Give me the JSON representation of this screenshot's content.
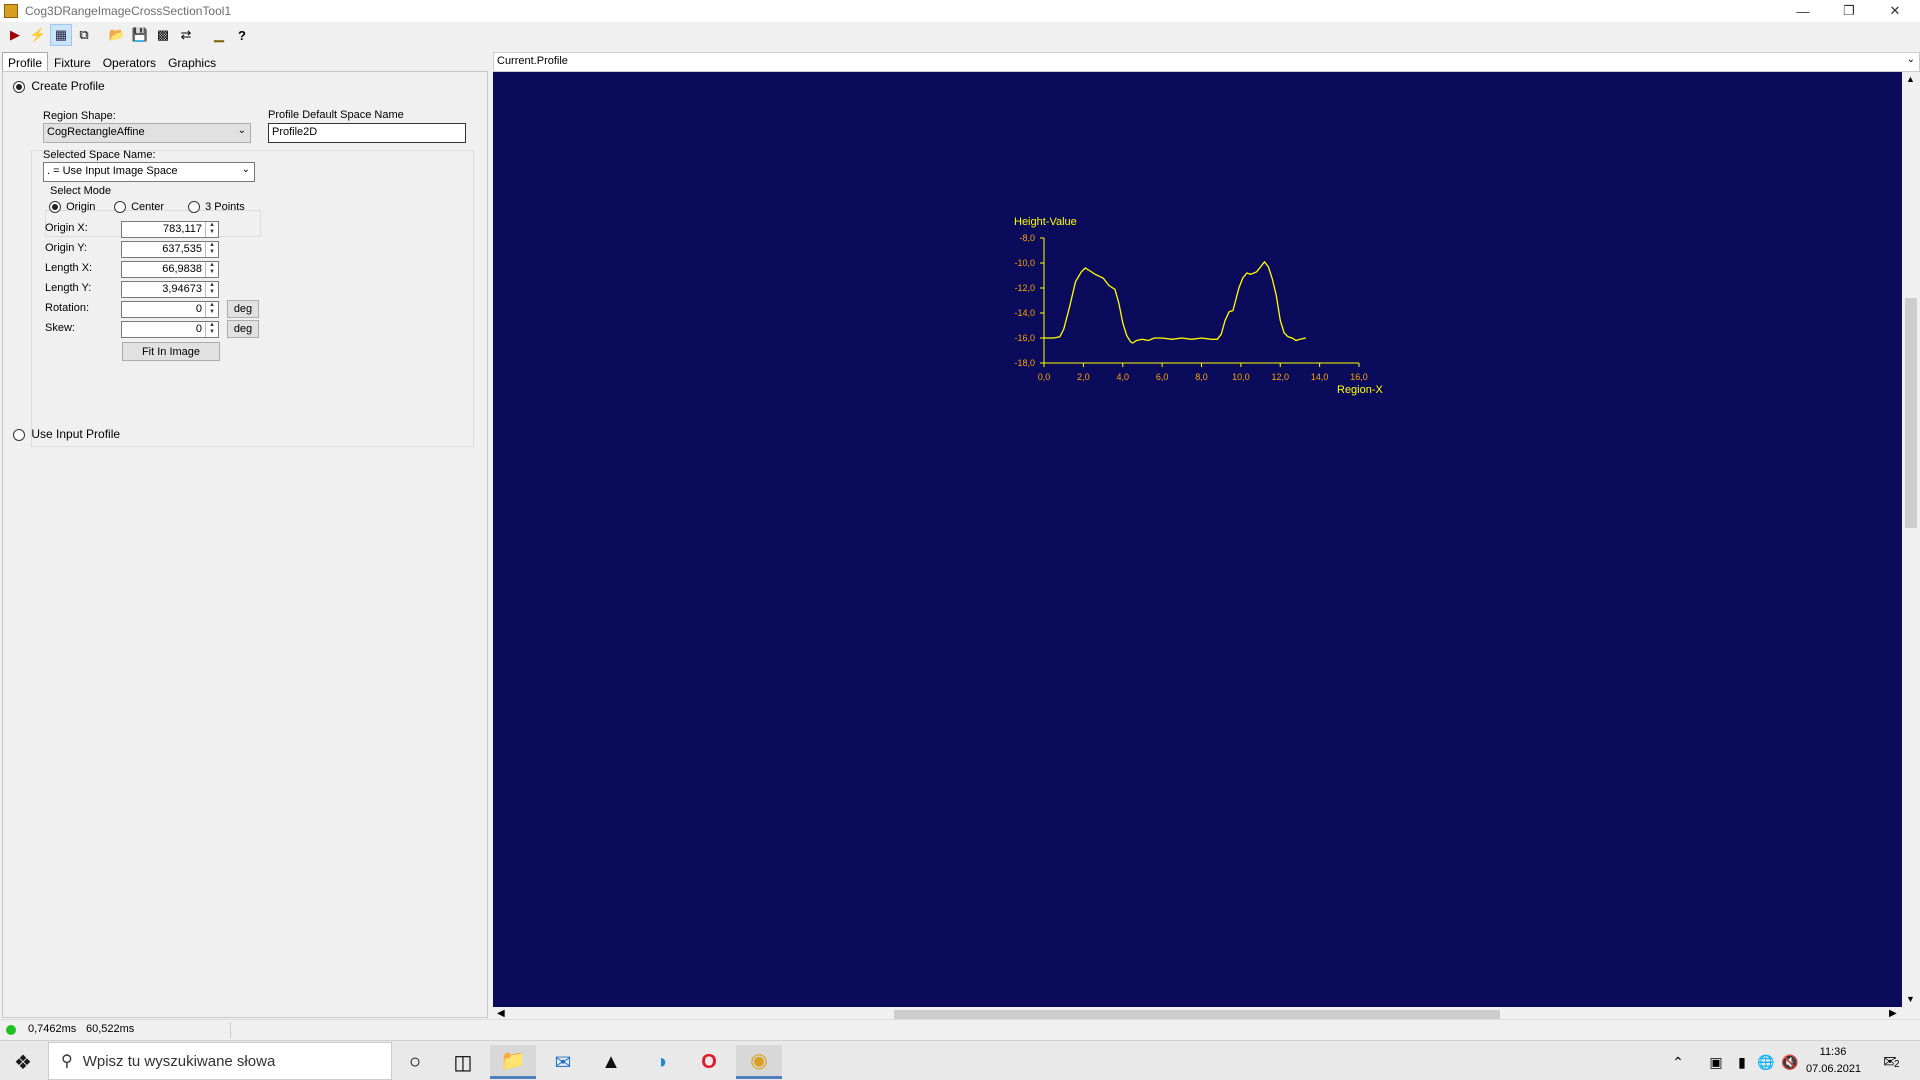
{
  "window": {
    "title": "Cog3DRangeImageCrossSectionTool1"
  },
  "tabs": [
    "Profile",
    "Fixture",
    "Operators",
    "Graphics"
  ],
  "profile": {
    "create_profile_label": "Create Profile",
    "use_input_profile_label": "Use Input Profile",
    "region_shape_label": "Region Shape:",
    "region_shape_value": "CogRectangleAffine",
    "default_space_label": "Profile Default Space Name",
    "default_space_value": "Profile2D",
    "selected_space_label": "Selected Space Name:",
    "selected_space_value": ". = Use Input Image Space",
    "select_mode_label": "Select Mode",
    "modes": [
      "Origin",
      "Center",
      "3 Points"
    ],
    "selected_mode": "Origin",
    "fields": [
      {
        "label": "Origin X:",
        "value": "783,117"
      },
      {
        "label": "Origin Y:",
        "value": "637,535"
      },
      {
        "label": "Length X:",
        "value": "66,9838"
      },
      {
        "label": "Length Y:",
        "value": "3,94673"
      },
      {
        "label": "Rotation:",
        "value": "0",
        "unit": "deg"
      },
      {
        "label": "Skew:",
        "value": "0",
        "unit": "deg"
      }
    ],
    "fit_button": "Fit In Image"
  },
  "status": {
    "time1": "0,7462ms",
    "time2": "60,522ms",
    "indicator_color": "#1fc11f"
  },
  "display": {
    "header": "Current.Profile",
    "background": "#0b0b5c"
  },
  "chart_data": {
    "type": "line",
    "title": "",
    "ylabel": "Height-Value",
    "xlabel": "Region-X",
    "xlim": [
      0,
      16
    ],
    "ylim": [
      -18,
      -8
    ],
    "x_ticks": [
      "0,0",
      "2,0",
      "4,0",
      "6,0",
      "8,0",
      "10,0",
      "12,0",
      "14,0",
      "16,0"
    ],
    "y_ticks": [
      "-8,0",
      "-10,0",
      "-12,0",
      "-14,0",
      "-16,0",
      "-18,0"
    ],
    "axis_color": "#ffff00",
    "tick_label_color": "#ffa500",
    "line_color": "#ffff00",
    "series": [
      {
        "x": [
          0.0,
          0.5,
          0.8,
          1.0,
          1.3,
          1.6,
          1.9,
          2.1,
          2.3,
          2.6,
          3.0,
          3.3,
          3.6,
          3.8,
          4.0,
          4.2,
          4.4,
          4.5,
          4.7,
          5.0,
          5.3,
          5.6,
          6.0,
          6.5,
          7.0,
          7.5,
          8.0,
          8.5,
          8.8,
          9.0,
          9.2,
          9.4,
          9.6,
          9.9,
          10.1,
          10.3,
          10.5,
          10.8,
          11.0,
          11.2,
          11.4,
          11.6,
          11.8,
          12.0,
          12.2,
          12.4,
          12.6,
          12.8,
          13.0,
          13.3
        ],
        "y": [
          -16.0,
          -16.0,
          -15.9,
          -15.3,
          -13.5,
          -11.5,
          -10.7,
          -10.4,
          -10.6,
          -10.9,
          -11.2,
          -11.8,
          -12.1,
          -13.2,
          -14.8,
          -15.8,
          -16.3,
          -16.4,
          -16.2,
          -16.1,
          -16.2,
          -16.0,
          -16.0,
          -16.1,
          -16.0,
          -16.1,
          -16.0,
          -16.1,
          -16.1,
          -15.7,
          -14.6,
          -13.9,
          -13.8,
          -12.0,
          -11.2,
          -10.8,
          -10.9,
          -10.7,
          -10.3,
          -9.9,
          -10.3,
          -11.3,
          -12.6,
          -14.6,
          -15.6,
          -15.9,
          -16.0,
          -16.2,
          -16.1,
          -16.0
        ]
      }
    ]
  },
  "taskbar": {
    "search_placeholder": "Wpisz tu wyszukiwane słowa",
    "time": "11:36",
    "date": "07.06.2021",
    "notifications": "2"
  }
}
